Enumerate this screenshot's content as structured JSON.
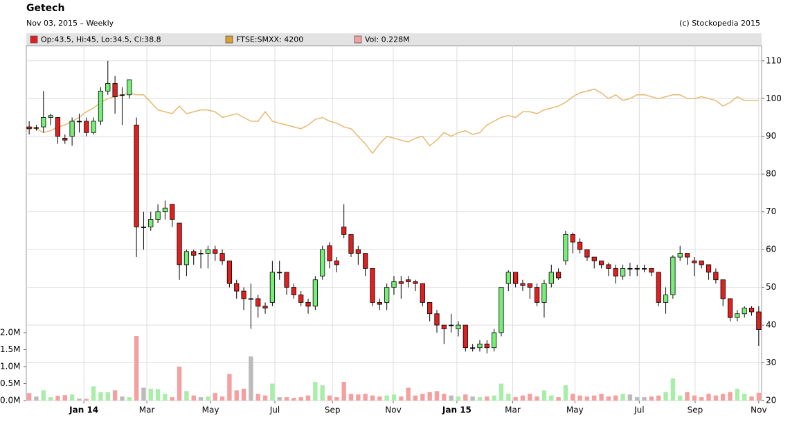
{
  "chart_data": {
    "type": "candlestick",
    "title": "Getech",
    "subtitle": "Nov 03, 2015 – Weekly",
    "source": "(c) Stockopedia 2015",
    "grid": true,
    "xlim": [
      -0.4,
      102.4
    ],
    "xticks": [
      {
        "value": 7.65,
        "label": "Jan 14"
      },
      {
        "value": 16.45,
        "label": "Mar"
      },
      {
        "value": 25.35,
        "label": "May"
      },
      {
        "value": 34.35,
        "label": "Jul"
      },
      {
        "value": 42.4,
        "label": "Sep"
      },
      {
        "value": 50.9,
        "label": "Nov"
      },
      {
        "value": 59.8,
        "label": "Jan 15"
      },
      {
        "value": 67.6,
        "label": "Mar"
      },
      {
        "value": 76.3,
        "label": "May"
      },
      {
        "value": 85.3,
        "label": "Jul"
      },
      {
        "value": 93.1,
        "label": "Sep"
      },
      {
        "value": 102,
        "label": "Nov"
      }
    ],
    "ylim": [
      20,
      114
    ],
    "yticks": [
      20,
      30,
      40,
      50,
      60,
      70,
      80,
      90,
      100,
      110
    ],
    "y2lim": [
      0,
      2
    ],
    "y2ticks": [
      {
        "value": 0,
        "label": "0.0M"
      },
      {
        "value": 0.5,
        "label": "0.5M"
      },
      {
        "value": 1,
        "label": "1.0M"
      },
      {
        "value": 1.5,
        "label": "1.5M"
      },
      {
        "value": 2,
        "label": "2.0M"
      }
    ],
    "series": [
      {
        "name": "Op:43.5, Hi:45, Lo:34.5, Cl:38.8",
        "type": "candlestick",
        "color": "#e02020",
        "up_color": "#77ee77",
        "down_color": "#e02020",
        "open": [
          92.5,
          92.3,
          92.5,
          95,
          95,
          89.5,
          90,
          94,
          94,
          91,
          94,
          102,
          104,
          101,
          101,
          93,
          66,
          66,
          68,
          70,
          72,
          67,
          56,
          59.5,
          59,
          59,
          60,
          59,
          57,
          51,
          49,
          47,
          47,
          45,
          46,
          54,
          54,
          50,
          48,
          46,
          45,
          53,
          61,
          57,
          66,
          64,
          60,
          59,
          55,
          46,
          46,
          50,
          51.5,
          52,
          51.5,
          51,
          46,
          43,
          40,
          40,
          39,
          40,
          34,
          34,
          35,
          34,
          38,
          51,
          54,
          51,
          51,
          50,
          46,
          51,
          54,
          57,
          64,
          62,
          60,
          58,
          57,
          56,
          55,
          53,
          55,
          55,
          55,
          55,
          54,
          46,
          48,
          58,
          59,
          57,
          57,
          56,
          54,
          52,
          47,
          42,
          43,
          44.5,
          43.5
        ],
        "high": [
          94,
          93,
          102,
          96,
          95,
          90.5,
          95,
          96,
          95,
          95,
          103,
          110,
          106,
          103,
          105,
          95,
          70,
          70,
          72,
          73,
          72,
          67,
          60,
          60,
          60,
          61,
          61,
          60,
          57,
          52,
          50,
          51,
          48,
          46,
          57,
          57,
          54,
          51,
          49,
          47,
          53,
          61,
          62,
          58,
          72,
          64,
          61,
          59,
          55,
          47,
          51,
          53,
          53,
          53,
          52,
          51,
          46,
          44,
          40,
          43,
          41,
          40,
          35,
          36,
          36,
          39,
          50,
          54.5,
          54,
          52,
          51,
          51,
          52,
          56,
          55,
          65,
          64.5,
          63,
          60,
          58,
          57,
          56.5,
          56,
          56,
          56.5,
          56,
          56,
          55,
          54,
          50,
          58.5,
          61,
          59,
          58,
          57,
          56,
          55,
          52,
          47,
          44,
          45,
          45,
          45
        ],
        "low": [
          90.5,
          91.5,
          91,
          93,
          88,
          88,
          87.5,
          91,
          90,
          90.5,
          93,
          101,
          96,
          93,
          100,
          58,
          60,
          65,
          67,
          68,
          66,
          52,
          53,
          56,
          55,
          55,
          57,
          56,
          50,
          47,
          44,
          39,
          42,
          43,
          45,
          52,
          48,
          47,
          45,
          43,
          44,
          52,
          55,
          54,
          63,
          58,
          56,
          53,
          45,
          44,
          44,
          48,
          47,
          50,
          49,
          45,
          41,
          38,
          35,
          38,
          37,
          33,
          33,
          33,
          32.5,
          33,
          37,
          49,
          50,
          49,
          47,
          45,
          42,
          50,
          52,
          56,
          59,
          59,
          57,
          55,
          55,
          53,
          51,
          52,
          53,
          53,
          54,
          53,
          45,
          43,
          47,
          57,
          56,
          53,
          55,
          52,
          51,
          45,
          41,
          41,
          42,
          42.5,
          34.5
        ],
        "close": [
          92,
          92.3,
          95,
          95.5,
          90,
          89,
          94,
          94,
          91,
          94,
          102,
          104,
          100.5,
          101,
          105,
          66,
          66,
          68,
          70,
          71,
          68,
          56,
          59.5,
          58.5,
          59,
          60,
          59,
          57,
          51,
          49,
          47,
          47,
          45,
          44.5,
          54,
          54,
          50,
          48,
          46,
          45,
          52,
          60,
          57,
          56,
          64,
          59,
          59,
          55,
          46,
          45.5,
          50,
          51.5,
          51,
          51.5,
          51,
          46,
          43,
          40,
          39,
          40,
          40,
          34,
          34,
          35,
          34,
          38,
          50,
          54,
          51,
          50.5,
          50,
          46,
          51,
          54,
          52.5,
          64,
          62,
          60,
          58,
          57,
          56,
          55,
          53,
          55,
          55,
          55,
          55,
          54,
          46,
          48,
          58,
          59,
          58,
          56.5,
          56,
          54,
          52,
          47,
          42,
          43,
          44.5,
          43.5,
          38.8
        ]
      },
      {
        "name": "FTSE:SMXX: 4200",
        "type": "line",
        "color": "#e8b870",
        "values": [
          92.5,
          92,
          91,
          91.5,
          92.5,
          93,
          94,
          95,
          96.5,
          97.5,
          99,
          100,
          100.5,
          101,
          101.5,
          101,
          101,
          99,
          97,
          96.5,
          96,
          98,
          96,
          96.5,
          97,
          97,
          96.5,
          95,
          95.5,
          96,
          95,
          94,
          94,
          96.5,
          94,
          93.5,
          93,
          92.5,
          92,
          93,
          94.5,
          95,
          94,
          93.5,
          92.5,
          92,
          90,
          88,
          85.5,
          88,
          90,
          89.5,
          89,
          88.5,
          89.5,
          90,
          87.5,
          89,
          91,
          90,
          91,
          91.5,
          90.5,
          91,
          93,
          94,
          95,
          95.5,
          95,
          96.5,
          96.5,
          96,
          97,
          97.5,
          98,
          99,
          100.5,
          101.5,
          102,
          102.5,
          101.5,
          100,
          101,
          99.5,
          100,
          101,
          101,
          100.5,
          100,
          100.5,
          101,
          101,
          100,
          100,
          100.5,
          100,
          99.5,
          98,
          99,
          100.5,
          99.5,
          99.5,
          99.5
        ]
      },
      {
        "name": "Vol: 0.228M",
        "type": "bar",
        "axis": "y2",
        "color": "#f4a0a0",
        "up_color": "#a8eea8",
        "flat_color": "#bbbbbb",
        "values": [
          0.22,
          0.12,
          0.3,
          0.1,
          0.14,
          0.16,
          0.18,
          0.06,
          0.05,
          0.42,
          0.25,
          0.25,
          0.3,
          0.12,
          0.1,
          1.9,
          0.38,
          0.35,
          0.34,
          0.2,
          0.1,
          1.0,
          0.28,
          0.15,
          0.1,
          0.12,
          0.22,
          0.12,
          0.78,
          0.3,
          0.35,
          1.3,
          0.2,
          0.15,
          0.5,
          0.1,
          0.1,
          0.08,
          0.1,
          0.15,
          0.55,
          0.45,
          0.15,
          0.1,
          0.55,
          0.2,
          0.18,
          0.2,
          0.15,
          0.12,
          0.15,
          0.18,
          0.12,
          0.38,
          0.15,
          0.2,
          0.25,
          0.28,
          0.2,
          0.15,
          0.12,
          0.18,
          0.12,
          0.1,
          0.12,
          0.15,
          0.5,
          0.2,
          0.1,
          0.15,
          0.2,
          0.12,
          0.3,
          0.15,
          0.1,
          0.45,
          0.2,
          0.15,
          0.12,
          0.15,
          0.2,
          0.12,
          0.15,
          0.2,
          0.18,
          0.1,
          0.1,
          0.12,
          0.15,
          0.25,
          0.65,
          0.15,
          0.25,
          0.15,
          0.1,
          0.2,
          0.15,
          0.2,
          0.25,
          0.35,
          0.2,
          0.12,
          0.228
        ]
      }
    ]
  }
}
